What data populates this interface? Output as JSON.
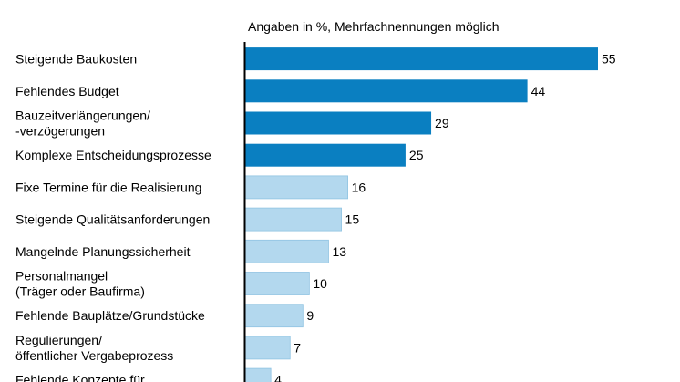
{
  "chart_data": {
    "type": "bar",
    "orientation": "horizontal",
    "subtitle": "Angaben in %, Mehrfachnennungen möglich",
    "categories": [
      [
        "Steigende Baukosten"
      ],
      [
        "Fehlendes Budget"
      ],
      [
        "Bauzeitverlängerungen/",
        "-verzögerungen"
      ],
      [
        "Komplexe Entscheidungsprozesse"
      ],
      [
        "Fixe Termine für die Realisierung"
      ],
      [
        "Steigende Qualitätsanforderungen"
      ],
      [
        "Mangelnde Planungssicherheit"
      ],
      [
        "Personalmangel",
        "(Träger oder Baufirma)"
      ],
      [
        "Fehlende Bauplätze/Grundstücke"
      ],
      [
        "Regulierungen/",
        "öffentlicher Vergabeprozess"
      ],
      [
        "Fehlende Konzepte für"
      ]
    ],
    "values": [
      55,
      44,
      29,
      25,
      16,
      15,
      13,
      10,
      9,
      7,
      4
    ],
    "highlight_count": 4,
    "colors": {
      "highlight": "#0a7fc1",
      "normal": "#b3d8ee",
      "axis": "#000000"
    },
    "xlim": [
      0,
      55
    ],
    "grid": false,
    "legend": "none"
  }
}
